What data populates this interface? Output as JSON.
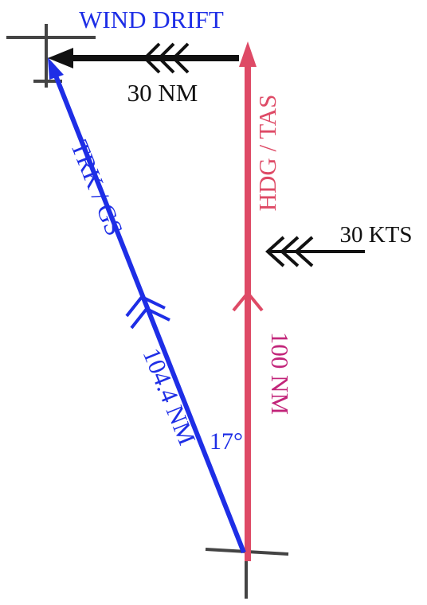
{
  "labels": {
    "wind_drift": "WIND DRIFT",
    "drift_distance": "30 NM",
    "hdg_tas": "HDG / TAS",
    "wind_speed": "30 KTS",
    "trk_gs": "TRK / GS",
    "track_distance": "104.4 NM",
    "heading_distance": "100 NM",
    "drift_angle": "17°"
  },
  "colors": {
    "wind": "#111111",
    "track": "#1e2ee6",
    "heading": "#de4a66",
    "wind_label": "#1e2ee6",
    "heading_distance_label": "#c2257a"
  }
}
